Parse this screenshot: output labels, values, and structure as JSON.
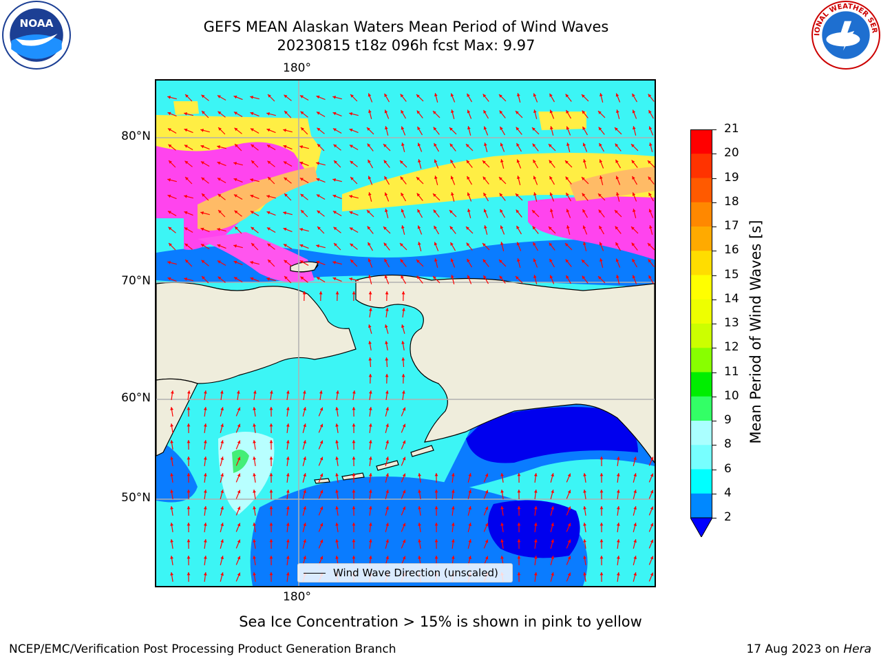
{
  "title": {
    "line1": "GEFS MEAN Alaskan Waters Mean Period of Wind Waves",
    "line2": "20230815 t18z 096h fcst   Max: 9.97"
  },
  "logos": {
    "left": {
      "icon": "noaa-logo-icon",
      "text": "NOAA"
    },
    "right": {
      "icon": "nws-logo-icon",
      "text": "NATIONAL WEATHER SERVICE"
    }
  },
  "map": {
    "lon_labels": {
      "top": "180°",
      "bottom": "180°"
    },
    "lat_labels": [
      "80°N",
      "70°N",
      "60°N",
      "50°N"
    ],
    "legend": "Wind Wave Direction (unscaled)",
    "colors": {
      "land": "#efeddc",
      "ocean_low": "#0080ff",
      "ocean_mid": "#00ffff",
      "ocean_deep": "#0000ff",
      "ice_pink": "#ff33ff",
      "ice_yellow": "#ffff33",
      "ice_orange": "#ffbb55",
      "arrows": "#ff0000",
      "grid": "#b0b0b0"
    }
  },
  "colorbar": {
    "label": "Mean Period of Wind Waves [s]",
    "ticks": [
      "21",
      "20",
      "19",
      "18",
      "17",
      "16",
      "15",
      "14",
      "13",
      "12",
      "11",
      "10",
      "9",
      "8",
      "6",
      "4",
      "2"
    ],
    "colors_top_to_bottom": [
      "#ff0000",
      "#ff3300",
      "#ff5a00",
      "#ff8800",
      "#ffaa00",
      "#ffdd00",
      "#ffff00",
      "#eeff00",
      "#ccff00",
      "#88ff00",
      "#00ee00",
      "#33ff66",
      "#aaffff",
      "#77ffff",
      "#00ffff",
      "#0088ff"
    ],
    "extend_color": "#0000ff"
  },
  "notes": {
    "ice": "Sea Ice Concentration > 15% is shown in pink to yellow",
    "footer_left": "NCEP/EMC/Verification Post Processing Product Generation Branch",
    "footer_right_date": "17 Aug 2023 on ",
    "footer_right_machine": "Hera"
  }
}
